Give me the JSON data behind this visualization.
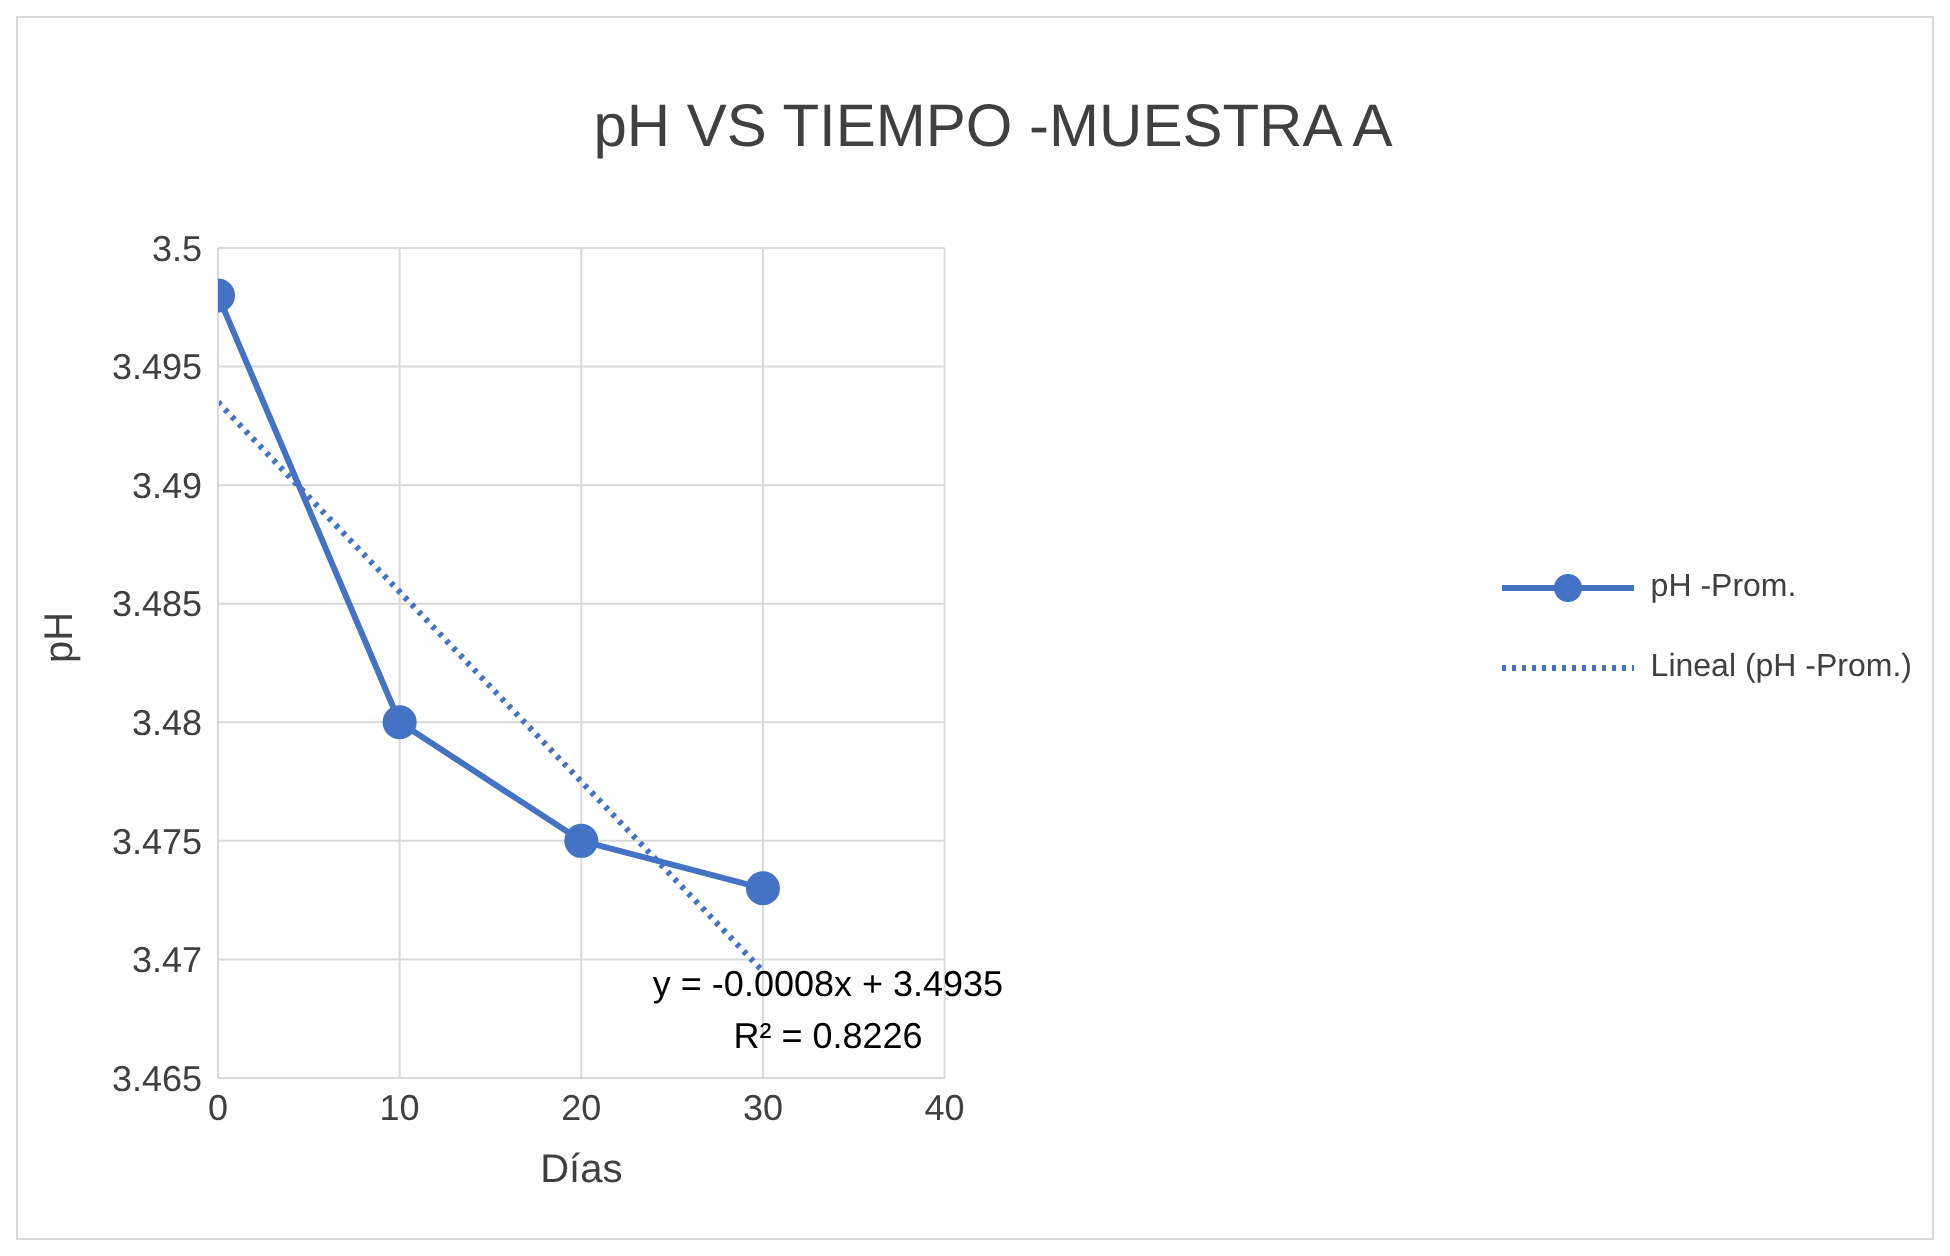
{
  "chart_data": {
    "type": "line",
    "title": "pH VS TIEMPO -MUESTRA A",
    "xlabel": "Días",
    "ylabel": "pH",
    "x": [
      0,
      10,
      20,
      30
    ],
    "series": [
      {
        "name": "pH -Prom.",
        "color": "#4472c4",
        "values": [
          3.498,
          3.48,
          3.475,
          3.473
        ],
        "marker": "circle",
        "line_style": "solid"
      },
      {
        "name": "Lineal (pH -Prom.)",
        "color": "#4472c4",
        "type": "line",
        "x": [
          0,
          30
        ],
        "values": [
          3.4935,
          3.4695
        ],
        "marker": "none",
        "line_style": "dotted"
      }
    ],
    "xlim": [
      0,
      40
    ],
    "xticks": [
      0,
      10,
      20,
      30,
      40
    ],
    "ylim": [
      3.465,
      3.5
    ],
    "yticks": [
      3.465,
      3.47,
      3.475,
      3.48,
      3.485,
      3.49,
      3.495,
      3.5
    ],
    "grid": true,
    "legend": "right",
    "annotations": [
      "y = -0.0008x + 3.4935",
      "R² = 0.8226"
    ]
  }
}
